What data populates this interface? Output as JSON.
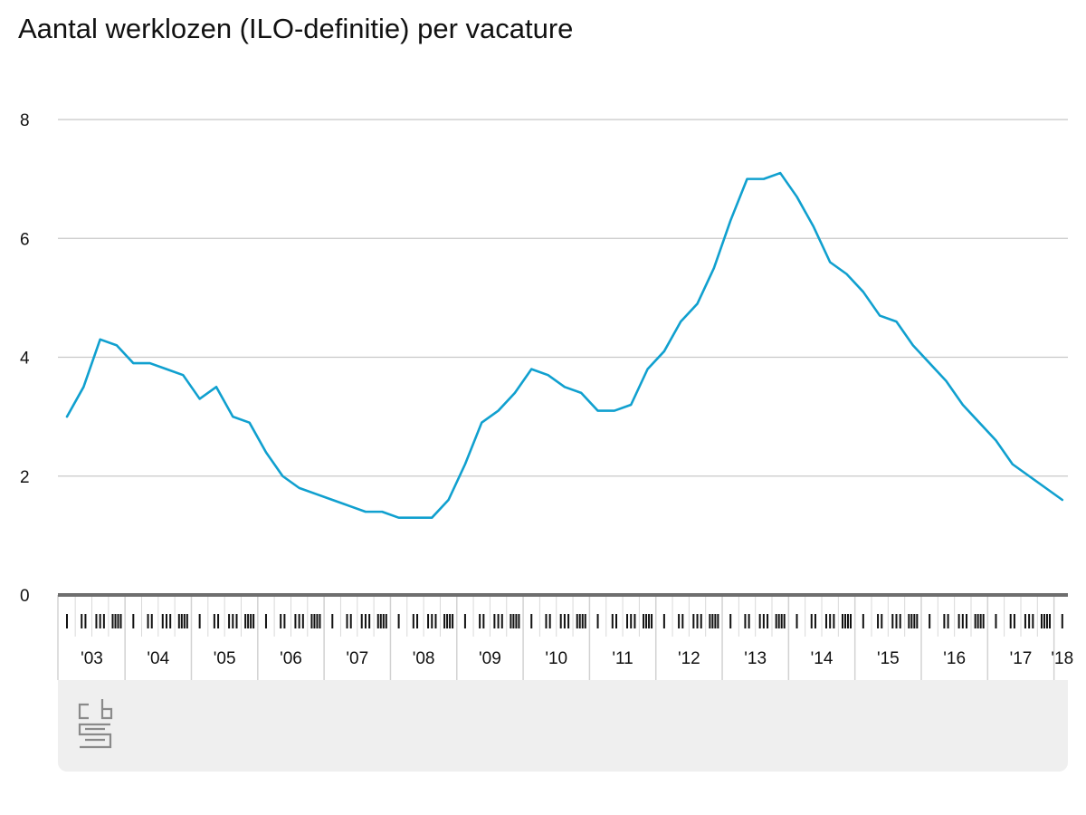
{
  "chart_data": {
    "type": "line",
    "title": "Aantal werklozen (ILO-definitie) per vacature",
    "xlabel": "",
    "ylabel": "",
    "ylim": [
      0,
      8
    ],
    "yticks": [
      "0",
      "2",
      "4",
      "6",
      "8"
    ],
    "grid": true,
    "legend": "none",
    "quarter_labels": [
      "I",
      "II",
      "III",
      "IV"
    ],
    "year_labels": [
      "'03",
      "'04",
      "'05",
      "'06",
      "'07",
      "'08",
      "'09",
      "'10",
      "'11",
      "'12",
      "'13",
      "'14",
      "'15",
      "'16",
      "'17",
      "'18"
    ],
    "x": [
      "2003 I",
      "2003 II",
      "2003 III",
      "2003 IV",
      "2004 I",
      "2004 II",
      "2004 III",
      "2004 IV",
      "2005 I",
      "2005 II",
      "2005 III",
      "2005 IV",
      "2006 I",
      "2006 II",
      "2006 III",
      "2006 IV",
      "2007 I",
      "2007 II",
      "2007 III",
      "2007 IV",
      "2008 I",
      "2008 II",
      "2008 III",
      "2008 IV",
      "2009 I",
      "2009 II",
      "2009 III",
      "2009 IV",
      "2010 I",
      "2010 II",
      "2010 III",
      "2010 IV",
      "2011 I",
      "2011 II",
      "2011 III",
      "2011 IV",
      "2012 I",
      "2012 II",
      "2012 III",
      "2012 IV",
      "2013 I",
      "2013 II",
      "2013 III",
      "2013 IV",
      "2014 I",
      "2014 II",
      "2014 III",
      "2014 IV",
      "2015 I",
      "2015 II",
      "2015 III",
      "2015 IV",
      "2016 I",
      "2016 II",
      "2016 III",
      "2016 IV",
      "2017 I",
      "2017 II",
      "2017 III",
      "2017 IV",
      "2018 I"
    ],
    "series": [
      {
        "values": [
          3.0,
          3.5,
          4.3,
          4.2,
          3.9,
          3.9,
          3.8,
          3.7,
          3.3,
          3.5,
          3.0,
          2.9,
          2.4,
          2.0,
          1.8,
          1.7,
          1.6,
          1.5,
          1.4,
          1.4,
          1.3,
          1.3,
          1.3,
          1.6,
          2.2,
          2.9,
          3.1,
          3.4,
          3.8,
          3.7,
          3.5,
          3.4,
          3.1,
          3.1,
          3.2,
          3.8,
          4.1,
          4.6,
          4.9,
          5.5,
          6.3,
          7.0,
          7.0,
          7.1,
          6.7,
          6.2,
          5.6,
          5.4,
          5.1,
          4.7,
          4.6,
          4.2,
          3.9,
          3.6,
          3.2,
          2.9,
          2.6,
          2.2,
          2.0,
          1.8,
          1.6
        ]
      }
    ]
  },
  "colors": {
    "series": "#10a0cf"
  },
  "logo": {
    "icon": "cbs-logo-icon",
    "text": "cbs"
  }
}
